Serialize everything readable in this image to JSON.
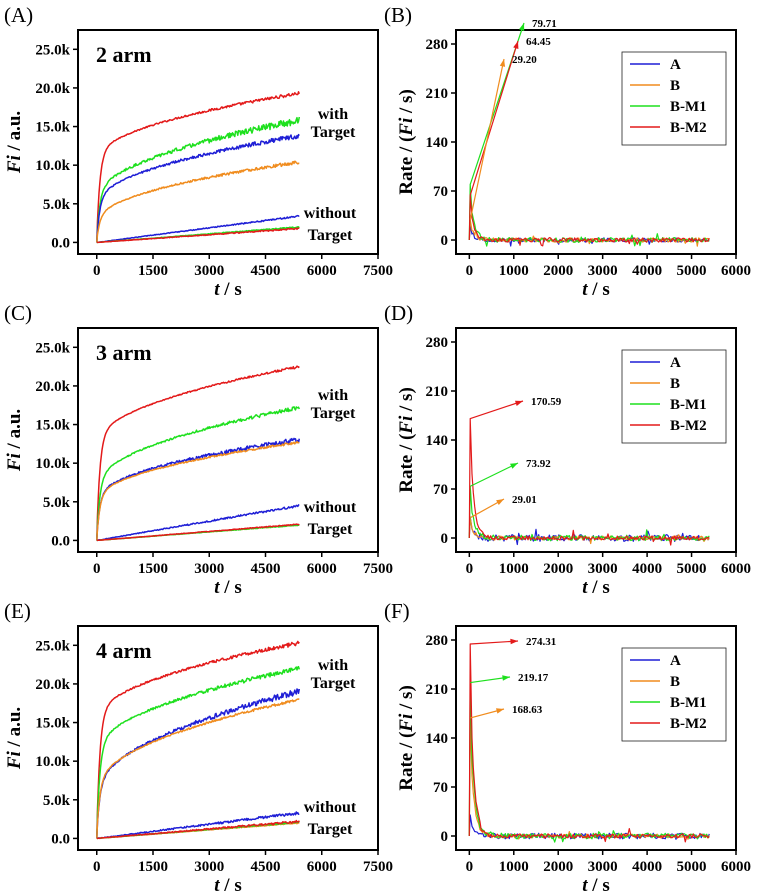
{
  "colors": {
    "A": "#1f1fd6",
    "B": "#f08c1e",
    "B-M1": "#1ee01e",
    "B-M2": "#e31a1a"
  },
  "chart_data": [
    {
      "panel": "(A)",
      "type": "line",
      "title": "2 arm",
      "xlabel_italic": "t",
      "xlabel_rest": " / s",
      "ylabel_italic": "Fi",
      "ylabel_rest": " / a.u.",
      "xlim": [
        -500,
        7500
      ],
      "ylim": [
        -1500,
        27500
      ],
      "xticks": [
        0,
        1500,
        3000,
        4500,
        6000,
        7500
      ],
      "xtick_labels": [
        "0",
        "1500",
        "3000",
        "4500",
        "6000",
        "7500"
      ],
      "yticks": [
        0,
        5000,
        10000,
        15000,
        20000,
        25000
      ],
      "ytick_labels": [
        "0.0",
        "5.0k",
        "10.0k",
        "15.0k",
        "20.0k",
        "25.0k"
      ],
      "annotations": {
        "with_line1": "with",
        "with_line2": "Target",
        "without_line1": "without",
        "without_line2": "Target"
      },
      "series": [
        {
          "name": "B-M2",
          "group": "with",
          "final": 19300,
          "shape": 0.55,
          "noise": 180
        },
        {
          "name": "B-M1",
          "group": "with",
          "final": 15800,
          "shape": 0.35,
          "noise": 380
        },
        {
          "name": "A",
          "group": "with",
          "final": 13800,
          "shape": 0.35,
          "noise": 250
        },
        {
          "name": "B",
          "group": "with",
          "final": 10400,
          "shape": 0.25,
          "noise": 180
        },
        {
          "name": "A",
          "group": "without",
          "final": 3400,
          "shape": 0,
          "noise": 80
        },
        {
          "name": "B",
          "group": "without",
          "final": 1900,
          "shape": 0,
          "noise": 40
        },
        {
          "name": "B-M1",
          "group": "without",
          "final": 2000,
          "shape": 0,
          "noise": 50
        },
        {
          "name": "B-M2",
          "group": "without",
          "final": 1800,
          "shape": 0,
          "noise": 80
        }
      ]
    },
    {
      "panel": "(B)",
      "type": "line",
      "title": "",
      "xlabel_italic": "t",
      "xlabel_rest": " / s",
      "ylabel_pre": "Rate / (",
      "ylabel_italic": "Fi",
      "ylabel_rest": " / s)",
      "xlim": [
        -300,
        6000
      ],
      "ylim": [
        -20,
        300
      ],
      "xticks": [
        0,
        1000,
        2000,
        3000,
        4000,
        5000,
        6000
      ],
      "xtick_labels": [
        "0",
        "1000",
        "2000",
        "3000",
        "4000",
        "5000",
        "6000"
      ],
      "yticks": [
        0,
        70,
        140,
        210,
        280
      ],
      "ytick_labels": [
        "0",
        "70",
        "140",
        "210",
        "280"
      ],
      "legend": [
        "A",
        "B",
        "B-M1",
        "B-M2"
      ],
      "peaks": [
        {
          "series": "B-M1",
          "value": 79.71,
          "label": "79.71"
        },
        {
          "series": "B-M2",
          "value": 64.45,
          "label": "64.45"
        },
        {
          "series": "B",
          "value": 29.2,
          "label": "29.20"
        }
      ],
      "series": [
        {
          "name": "A",
          "peak": 20,
          "noise": 3
        },
        {
          "name": "B",
          "peak": 29.2,
          "noise": 3
        },
        {
          "name": "B-M1",
          "peak": 79.71,
          "noise": 3.5
        },
        {
          "name": "B-M2",
          "peak": 64.45,
          "noise": 3
        }
      ]
    },
    {
      "panel": "(C)",
      "type": "line",
      "title": "3 arm",
      "xlabel_italic": "t",
      "xlabel_rest": " / s",
      "ylabel_italic": "Fi",
      "ylabel_rest": " / a.u.",
      "xlim": [
        -500,
        7500
      ],
      "ylim": [
        -1500,
        27500
      ],
      "xticks": [
        0,
        1500,
        3000,
        4500,
        6000,
        7500
      ],
      "xtick_labels": [
        "0",
        "1500",
        "3000",
        "4500",
        "6000",
        "7500"
      ],
      "yticks": [
        0,
        5000,
        10000,
        15000,
        20000,
        25000
      ],
      "ytick_labels": [
        "0.0",
        "5.0k",
        "10.0k",
        "15.0k",
        "20.0k",
        "25.0k"
      ],
      "annotations": {
        "with_line1": "with",
        "with_line2": "Target",
        "without_line1": "without",
        "without_line2": "Target"
      },
      "series": [
        {
          "name": "B-M2",
          "group": "with",
          "final": 22500,
          "shape": 0.55,
          "noise": 120
        },
        {
          "name": "B-M1",
          "group": "with",
          "final": 17200,
          "shape": 0.4,
          "noise": 200
        },
        {
          "name": "A",
          "group": "with",
          "final": 13000,
          "shape": 0.4,
          "noise": 300
        },
        {
          "name": "B",
          "group": "with",
          "final": 12700,
          "shape": 0.4,
          "noise": 120
        },
        {
          "name": "A",
          "group": "without",
          "final": 4500,
          "shape": 0,
          "noise": 120
        },
        {
          "name": "B",
          "group": "without",
          "final": 2000,
          "shape": 0,
          "noise": 40
        },
        {
          "name": "B-M1",
          "group": "without",
          "final": 2000,
          "shape": 0,
          "noise": 50
        },
        {
          "name": "B-M2",
          "group": "without",
          "final": 2100,
          "shape": 0,
          "noise": 40
        }
      ]
    },
    {
      "panel": "(D)",
      "type": "line",
      "title": "",
      "xlabel_italic": "t",
      "xlabel_rest": " / s",
      "ylabel_pre": "Rate / (",
      "ylabel_italic": "Fi",
      "ylabel_rest": " / s)",
      "xlim": [
        -300,
        6000
      ],
      "ylim": [
        -20,
        300
      ],
      "xticks": [
        0,
        1000,
        2000,
        3000,
        4000,
        5000,
        6000
      ],
      "xtick_labels": [
        "0",
        "1000",
        "2000",
        "3000",
        "4000",
        "5000",
        "6000"
      ],
      "yticks": [
        0,
        70,
        140,
        210,
        280
      ],
      "ytick_labels": [
        "0",
        "70",
        "140",
        "210",
        "280"
      ],
      "legend": [
        "A",
        "B",
        "B-M1",
        "B-M2"
      ],
      "peaks": [
        {
          "series": "B-M2",
          "value": 170.59,
          "label": "170.59"
        },
        {
          "series": "B-M1",
          "value": 73.92,
          "label": "73.92"
        },
        {
          "series": "B",
          "value": 29.01,
          "label": "29.01"
        }
      ],
      "series": [
        {
          "name": "A",
          "peak": 30,
          "noise": 5
        },
        {
          "name": "B",
          "peak": 29.01,
          "noise": 3
        },
        {
          "name": "B-M1",
          "peak": 73.92,
          "noise": 4
        },
        {
          "name": "B-M2",
          "peak": 170.59,
          "noise": 3
        }
      ]
    },
    {
      "panel": "(E)",
      "type": "line",
      "title": "4 arm",
      "xlabel_italic": "t",
      "xlabel_rest": " / s",
      "ylabel_italic": "Fi",
      "ylabel_rest": " / a.u.",
      "xlim": [
        -500,
        7500
      ],
      "ylim": [
        -1500,
        27500
      ],
      "xticks": [
        0,
        1500,
        3000,
        4500,
        6000,
        7500
      ],
      "xtick_labels": [
        "0",
        "1500",
        "3000",
        "4500",
        "6000",
        "7500"
      ],
      "yticks": [
        0,
        5000,
        10000,
        15000,
        20000,
        25000
      ],
      "ytick_labels": [
        "0.0",
        "5.0k",
        "10.0k",
        "15.0k",
        "20.0k",
        "25.0k"
      ],
      "annotations": {
        "with_line1": "with",
        "with_line2": "Target",
        "without_line1": "without",
        "without_line2": "Target"
      },
      "series": [
        {
          "name": "B-M2",
          "group": "with",
          "final": 25300,
          "shape": 0.6,
          "noise": 220
        },
        {
          "name": "B-M1",
          "group": "with",
          "final": 22000,
          "shape": 0.5,
          "noise": 250
        },
        {
          "name": "A",
          "group": "with",
          "final": 19000,
          "shape": 0.3,
          "noise": 350
        },
        {
          "name": "B",
          "group": "with",
          "final": 18000,
          "shape": 0.35,
          "noise": 150
        },
        {
          "name": "A",
          "group": "without",
          "final": 3300,
          "shape": 0,
          "noise": 150
        },
        {
          "name": "B",
          "group": "without",
          "final": 2000,
          "shape": 0,
          "noise": 50
        },
        {
          "name": "B-M1",
          "group": "without",
          "final": 2100,
          "shape": 0,
          "noise": 60
        },
        {
          "name": "B-M2",
          "group": "without",
          "final": 2200,
          "shape": 0,
          "noise": 120
        }
      ]
    },
    {
      "panel": "(F)",
      "type": "line",
      "title": "",
      "xlabel_italic": "t",
      "xlabel_rest": " / s",
      "ylabel_pre": "Rate / (",
      "ylabel_italic": "Fi",
      "ylabel_rest": " / s)",
      "xlim": [
        -300,
        6000
      ],
      "ylim": [
        -20,
        300
      ],
      "xticks": [
        0,
        1000,
        2000,
        3000,
        4000,
        5000,
        6000
      ],
      "xtick_labels": [
        "0",
        "1000",
        "2000",
        "3000",
        "4000",
        "5000",
        "6000"
      ],
      "yticks": [
        0,
        70,
        140,
        210,
        280
      ],
      "ytick_labels": [
        "0",
        "70",
        "140",
        "210",
        "280"
      ],
      "legend": [
        "A",
        "B",
        "B-M1",
        "B-M2"
      ],
      "peaks": [
        {
          "series": "B-M2",
          "value": 274.31,
          "label": "274.31"
        },
        {
          "series": "B-M1",
          "value": 219.17,
          "label": "219.17"
        },
        {
          "series": "B",
          "value": 168.63,
          "label": "168.63"
        }
      ],
      "series": [
        {
          "name": "A",
          "peak": 30,
          "noise": 4
        },
        {
          "name": "B",
          "peak": 168.63,
          "noise": 3
        },
        {
          "name": "B-M1",
          "peak": 219.17,
          "noise": 4
        },
        {
          "name": "B-M2",
          "peak": 274.31,
          "noise": 3
        }
      ]
    }
  ]
}
